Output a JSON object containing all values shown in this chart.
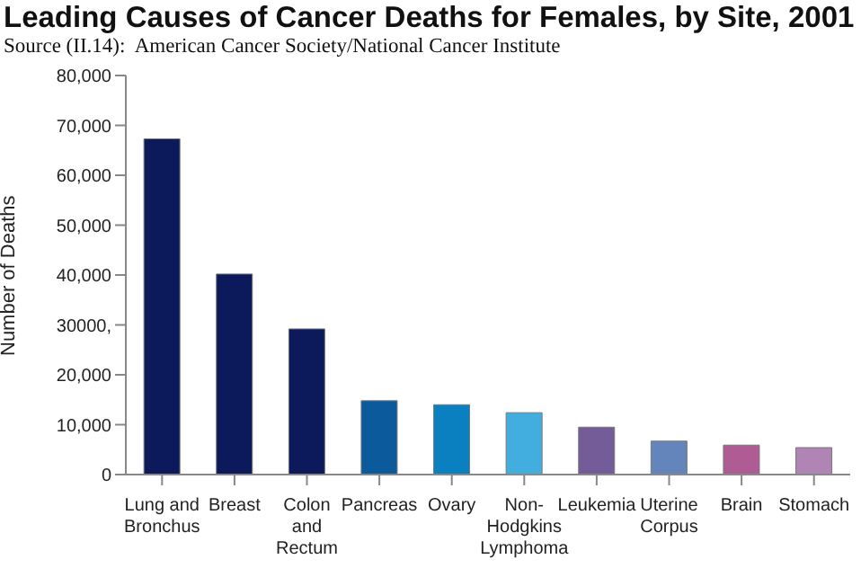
{
  "chart_data": {
    "type": "bar",
    "title": "Leading Causes of Cancer Deaths for Females, by Site, 2001",
    "subtitle": "Source (II.14):  American Cancer Society/National Cancer Institute",
    "ylabel": "Number of Deaths",
    "categories": [
      "Lung and Bronchus",
      "Breast",
      "Colon and Rectum",
      "Pancreas",
      "Ovary",
      "Non-Hodgkins Lymphoma",
      "Leukemia",
      "Uterine Corpus",
      "Brain",
      "Stomach"
    ],
    "values": [
      67300,
      40200,
      29200,
      14800,
      14000,
      12400,
      9500,
      6700,
      5900,
      5400
    ],
    "colors": [
      "#0c1a5c",
      "#0c1a5c",
      "#0c1a5c",
      "#0a5a9c",
      "#0a80c0",
      "#42aee0",
      "#735c98",
      "#6484bc",
      "#b05c94",
      "#b084b4"
    ],
    "ylim": [
      0,
      80000
    ],
    "yticks": [
      0,
      {
        "value": 10000,
        "label": "10,000"
      },
      {
        "value": 20000,
        "label": "20,000"
      },
      {
        "value": 30000,
        "label": "30000,"
      },
      {
        "value": 40000,
        "label": "40,000"
      },
      {
        "value": 50000,
        "label": "50,000"
      },
      {
        "value": 60000,
        "label": "60,000"
      },
      {
        "value": 70000,
        "label": "70,000"
      },
      {
        "value": 80000,
        "label": "80,000"
      }
    ],
    "grid": false
  }
}
